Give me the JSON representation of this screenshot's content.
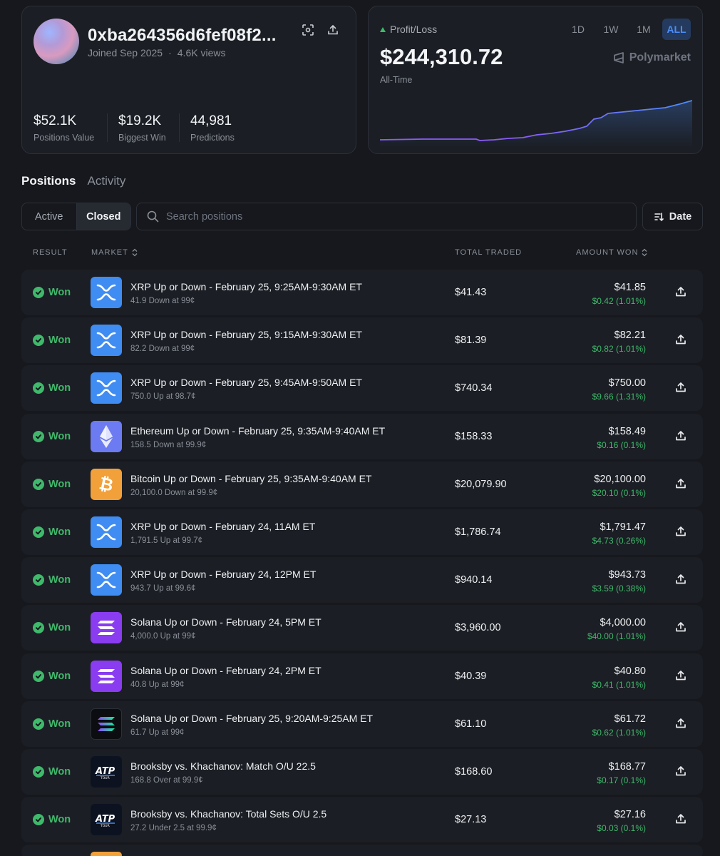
{
  "profile": {
    "username": "0xba264356d6fef08f2...",
    "joined": "Joined Sep 2025",
    "views": "4.6K views",
    "separator": "·",
    "stats": [
      {
        "value": "$52.1K",
        "label": "Positions Value"
      },
      {
        "value": "$19.2K",
        "label": "Biggest Win"
      },
      {
        "value": "44,981",
        "label": "Predictions"
      }
    ]
  },
  "pnl": {
    "label": "Profit/Loss",
    "value": "$244,310.72",
    "period_label": "All-Time",
    "brand": "Polymarket",
    "ranges": [
      "1D",
      "1W",
      "1M",
      "ALL"
    ],
    "active_range": "ALL",
    "accent_color": "#4b8df8",
    "line_color_start": "#8b5cf6",
    "line_color_end": "#4b8df8"
  },
  "tabs": {
    "positions": "Positions",
    "activity": "Activity"
  },
  "toggle": {
    "active": "Active",
    "closed": "Closed"
  },
  "search": {
    "placeholder": "Search positions"
  },
  "sort": {
    "label": "Date"
  },
  "table_headers": {
    "result": "RESULT",
    "market": "MARKET",
    "total_traded": "TOTAL TRADED",
    "amount_won": "AMOUNT WON"
  },
  "rows": [
    {
      "result": "Won",
      "icon": "xrp-logo",
      "title": "XRP Up or Down - February 25, 9:25AM-9:30AM ET",
      "sub": "41.9 Down at 99¢",
      "traded": "$41.43",
      "amount": "$41.85",
      "gain": "$0.42 (1.01%)"
    },
    {
      "result": "Won",
      "icon": "xrp-logo",
      "title": "XRP Up or Down - February 25, 9:15AM-9:30AM ET",
      "sub": "82.2 Down at 99¢",
      "traded": "$81.39",
      "amount": "$82.21",
      "gain": "$0.82 (1.01%)"
    },
    {
      "result": "Won",
      "icon": "xrp-logo",
      "title": "XRP Up or Down - February 25, 9:45AM-9:50AM ET",
      "sub": "750.0 Up at 98.7¢",
      "traded": "$740.34",
      "amount": "$750.00",
      "gain": "$9.66 (1.31%)"
    },
    {
      "result": "Won",
      "icon": "eth-logo",
      "title": "Ethereum Up or Down - February 25, 9:35AM-9:40AM ET",
      "sub": "158.5 Down at 99.9¢",
      "traded": "$158.33",
      "amount": "$158.49",
      "gain": "$0.16 (0.1%)"
    },
    {
      "result": "Won",
      "icon": "btc-logo",
      "title": "Bitcoin Up or Down - February 25, 9:35AM-9:40AM ET",
      "sub": "20,100.0 Down at 99.9¢",
      "traded": "$20,079.90",
      "amount": "$20,100.00",
      "gain": "$20.10 (0.1%)"
    },
    {
      "result": "Won",
      "icon": "xrp-logo",
      "title": "XRP Up or Down - February 24, 11AM ET",
      "sub": "1,791.5 Up at 99.7¢",
      "traded": "$1,786.74",
      "amount": "$1,791.47",
      "gain": "$4.73 (0.26%)"
    },
    {
      "result": "Won",
      "icon": "xrp-logo",
      "title": "XRP Up or Down - February 24, 12PM ET",
      "sub": "943.7 Up at 99.6¢",
      "traded": "$940.14",
      "amount": "$943.73",
      "gain": "$3.59 (0.38%)"
    },
    {
      "result": "Won",
      "icon": "sol-logo",
      "title": "Solana Up or Down - February 24, 5PM ET",
      "sub": "4,000.0 Up at 99¢",
      "traded": "$3,960.00",
      "amount": "$4,000.00",
      "gain": "$40.00 (1.01%)"
    },
    {
      "result": "Won",
      "icon": "sol-logo",
      "title": "Solana Up or Down - February 24, 2PM ET",
      "sub": "40.8 Up at 99¢",
      "traded": "$40.39",
      "amount": "$40.80",
      "gain": "$0.41 (1.01%)"
    },
    {
      "result": "Won",
      "icon": "sol-dark-logo",
      "title": "Solana Up or Down - February 25, 9:20AM-9:25AM ET",
      "sub": "61.7 Up at 99¢",
      "traded": "$61.10",
      "amount": "$61.72",
      "gain": "$0.62 (1.01%)"
    },
    {
      "result": "Won",
      "icon": "atp-logo",
      "title": "Brooksby vs. Khachanov: Match O/U 22.5",
      "sub": "168.8 Over at 99.9¢",
      "traded": "$168.60",
      "amount": "$168.77",
      "gain": "$0.17 (0.1%)"
    },
    {
      "result": "Won",
      "icon": "atp-logo",
      "title": "Brooksby vs. Khachanov: Total Sets O/U 2.5",
      "sub": "27.2 Under 2.5 at 99.9¢",
      "traded": "$27.13",
      "amount": "$27.16",
      "gain": "$0.03 (0.1%)"
    }
  ]
}
